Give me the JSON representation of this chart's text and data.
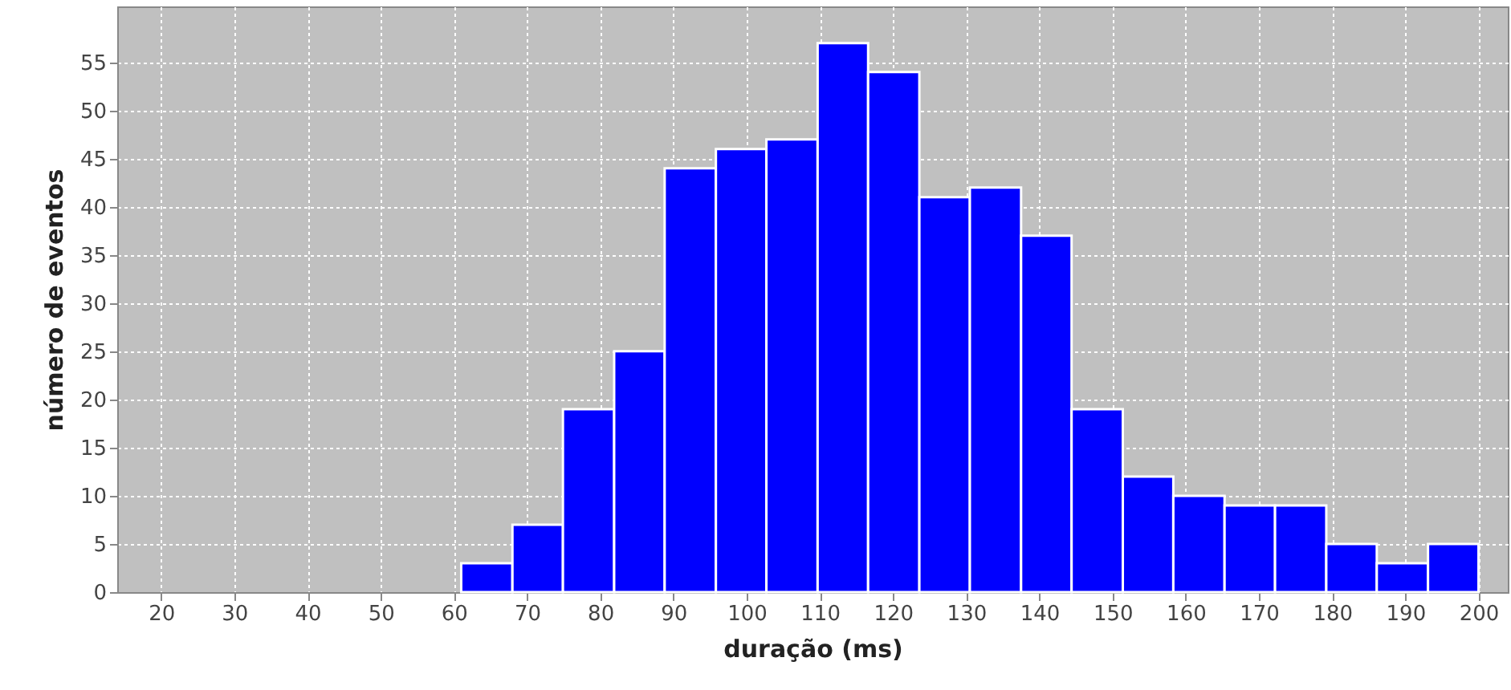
{
  "chart_data": {
    "type": "histogram",
    "xlabel": "duração (ms)",
    "ylabel": "número de eventos",
    "bins": [
      61,
      68,
      74.9,
      81.9,
      88.8,
      95.8,
      102.7,
      109.7,
      116.6,
      123.6,
      130.5,
      137.5,
      144.4,
      151.4,
      158.3,
      165.3,
      172.2,
      179.2,
      186.1,
      193.1,
      200
    ],
    "values": [
      3,
      7,
      19,
      25,
      44,
      46,
      47,
      57,
      54,
      41,
      42,
      37,
      19,
      12,
      10,
      9,
      9,
      5,
      3,
      5
    ],
    "color": "#0000ff",
    "xlim": [
      14,
      204
    ],
    "xticks": [
      20,
      30,
      40,
      50,
      60,
      70,
      80,
      90,
      100,
      110,
      120,
      130,
      140,
      150,
      160,
      170,
      180,
      190,
      200
    ],
    "ylim": [
      0,
      60.8
    ],
    "yticks": [
      0,
      5,
      10,
      15,
      20,
      25,
      30,
      35,
      40,
      45,
      50,
      55
    ],
    "grid": true
  }
}
